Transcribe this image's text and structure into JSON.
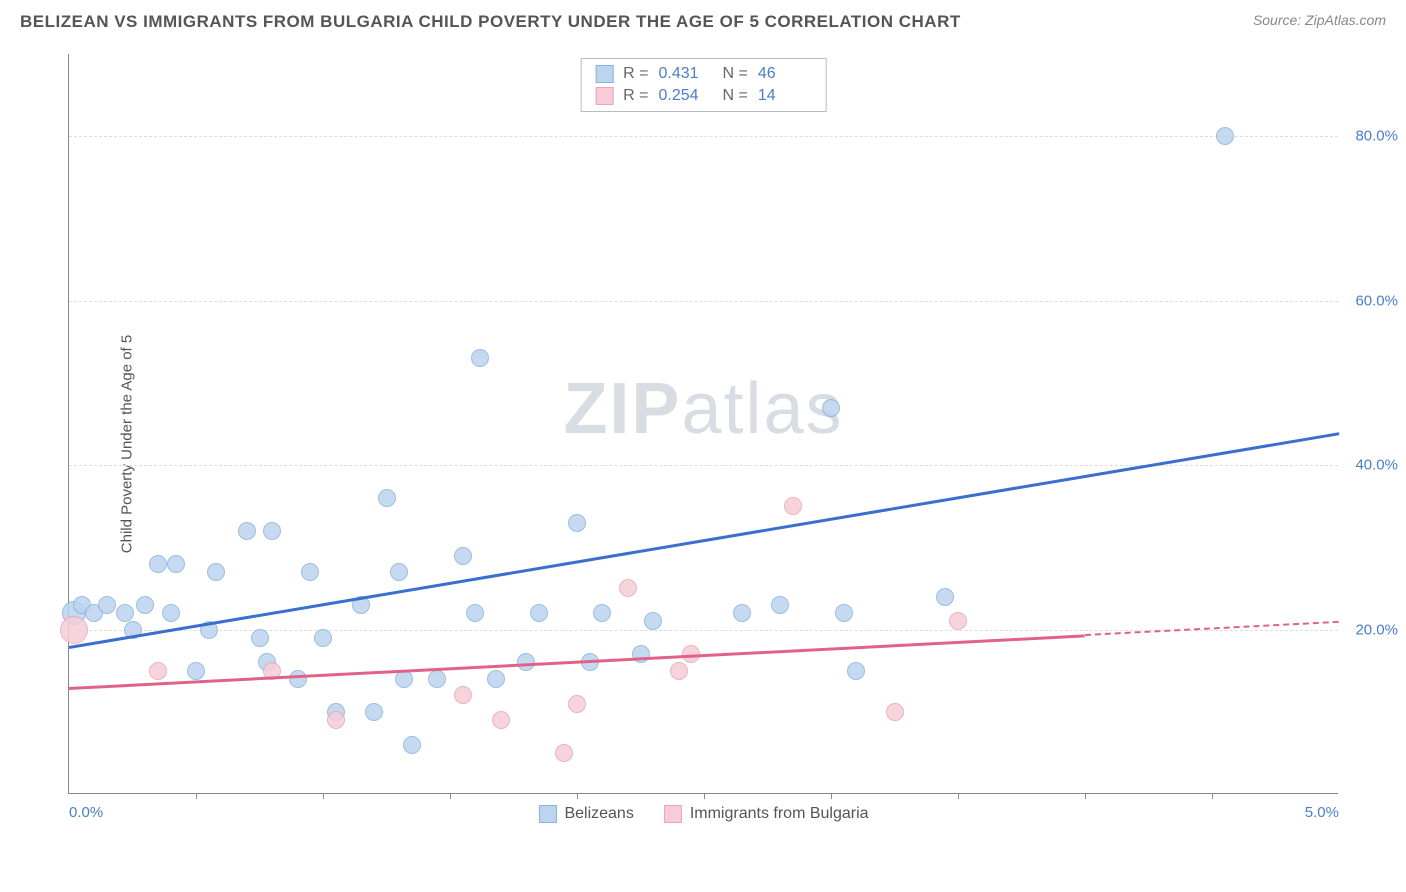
{
  "header": {
    "title": "BELIZEAN VS IMMIGRANTS FROM BULGARIA CHILD POVERTY UNDER THE AGE OF 5 CORRELATION CHART",
    "source_prefix": "Source: ",
    "source": "ZipAtlas.com"
  },
  "y_axis_label": "Child Poverty Under the Age of 5",
  "watermark_a": "ZIP",
  "watermark_b": "atlas",
  "chart": {
    "xlim": [
      0,
      5
    ],
    "ylim": [
      0,
      90
    ],
    "y_ticks": [
      20,
      40,
      60,
      80
    ],
    "y_tick_labels": [
      "20.0%",
      "40.0%",
      "60.0%",
      "80.0%"
    ],
    "x_ticks": [
      0,
      5
    ],
    "x_tick_labels": [
      "0.0%",
      "5.0%"
    ],
    "x_minor_ticks": [
      0.5,
      1.0,
      1.5,
      2.0,
      2.5,
      3.0,
      3.5,
      4.0,
      4.5
    ],
    "y_tick_color": "#4a7ec9",
    "grid_color": "#dddddd",
    "axis_color": "#888888",
    "background": "#ffffff"
  },
  "series": [
    {
      "name": "Belizeans",
      "color_fill": "#bcd4ee",
      "color_stroke": "#8ab3e0",
      "line_color": "#3a6fd0",
      "marker_r": 9,
      "R": "0.431",
      "N": "46",
      "trend": {
        "x1": 0.0,
        "y1": 18.0,
        "x2": 5.0,
        "y2": 44.0,
        "dash_from_x": null
      },
      "points": [
        {
          "x": 0.02,
          "y": 22,
          "r": 12
        },
        {
          "x": 0.05,
          "y": 23
        },
        {
          "x": 0.1,
          "y": 22
        },
        {
          "x": 0.15,
          "y": 23
        },
        {
          "x": 0.22,
          "y": 22
        },
        {
          "x": 0.25,
          "y": 20
        },
        {
          "x": 0.3,
          "y": 23
        },
        {
          "x": 0.35,
          "y": 28
        },
        {
          "x": 0.4,
          "y": 22
        },
        {
          "x": 0.42,
          "y": 28
        },
        {
          "x": 0.55,
          "y": 20
        },
        {
          "x": 0.58,
          "y": 27
        },
        {
          "x": 0.7,
          "y": 32
        },
        {
          "x": 0.75,
          "y": 19
        },
        {
          "x": 0.78,
          "y": 16
        },
        {
          "x": 0.8,
          "y": 32
        },
        {
          "x": 0.95,
          "y": 27
        },
        {
          "x": 1.0,
          "y": 19
        },
        {
          "x": 1.05,
          "y": 10
        },
        {
          "x": 1.15,
          "y": 23
        },
        {
          "x": 1.2,
          "y": 10
        },
        {
          "x": 1.25,
          "y": 36
        },
        {
          "x": 1.3,
          "y": 27
        },
        {
          "x": 1.32,
          "y": 14
        },
        {
          "x": 1.35,
          "y": 6
        },
        {
          "x": 1.45,
          "y": 14
        },
        {
          "x": 1.55,
          "y": 29
        },
        {
          "x": 1.6,
          "y": 22
        },
        {
          "x": 1.62,
          "y": 53
        },
        {
          "x": 1.68,
          "y": 14
        },
        {
          "x": 1.8,
          "y": 16
        },
        {
          "x": 1.85,
          "y": 22
        },
        {
          "x": 2.0,
          "y": 33
        },
        {
          "x": 2.05,
          "y": 16
        },
        {
          "x": 2.1,
          "y": 22
        },
        {
          "x": 2.25,
          "y": 17
        },
        {
          "x": 2.3,
          "y": 21
        },
        {
          "x": 2.65,
          "y": 22
        },
        {
          "x": 2.8,
          "y": 23
        },
        {
          "x": 3.0,
          "y": 47
        },
        {
          "x": 3.05,
          "y": 22
        },
        {
          "x": 3.1,
          "y": 15
        },
        {
          "x": 3.45,
          "y": 24
        },
        {
          "x": 4.55,
          "y": 80
        },
        {
          "x": 0.5,
          "y": 15
        },
        {
          "x": 0.9,
          "y": 14
        }
      ]
    },
    {
      "name": "Immigrants from Bulgaria",
      "color_fill": "#f6cdd6",
      "color_stroke": "#e9a6b6",
      "line_color": "#e06387",
      "marker_r": 9,
      "R": "0.254",
      "N": "14",
      "trend": {
        "x1": 0.0,
        "y1": 13.0,
        "x2": 5.0,
        "y2": 21.0,
        "dash_from_x": 4.0
      },
      "points": [
        {
          "x": 0.02,
          "y": 20,
          "r": 14
        },
        {
          "x": 0.35,
          "y": 15
        },
        {
          "x": 0.8,
          "y": 15
        },
        {
          "x": 1.05,
          "y": 9
        },
        {
          "x": 1.55,
          "y": 12
        },
        {
          "x": 1.7,
          "y": 9
        },
        {
          "x": 1.95,
          "y": 5
        },
        {
          "x": 2.0,
          "y": 11
        },
        {
          "x": 2.2,
          "y": 25
        },
        {
          "x": 2.4,
          "y": 15
        },
        {
          "x": 2.45,
          "y": 17
        },
        {
          "x": 2.85,
          "y": 35
        },
        {
          "x": 3.25,
          "y": 10
        },
        {
          "x": 3.5,
          "y": 21
        }
      ]
    }
  ],
  "stats_box": {
    "r_label": "R  =",
    "n_label": "N  ="
  },
  "legend": {
    "items": [
      "Belizeans",
      "Immigrants from Bulgaria"
    ]
  }
}
